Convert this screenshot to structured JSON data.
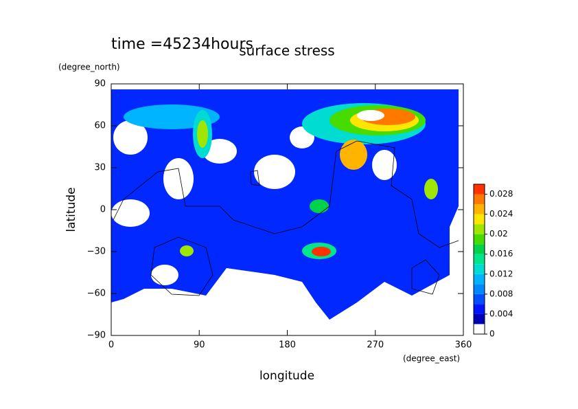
{
  "chart_data": {
    "type": "contour",
    "title": "surface stress",
    "subtitle": "time =45234hours",
    "y_unit": "(degree_north)",
    "x_unit": "(degree_east)",
    "ylabel": "latitude",
    "xlabel": "longitude",
    "xlim": [
      0,
      360
    ],
    "ylim": [
      -90,
      90
    ],
    "xticks": [
      0,
      90,
      180,
      270,
      360
    ],
    "yticks": [
      {
        "value": -90,
        "label": "−90"
      },
      {
        "value": -60,
        "label": "−60"
      },
      {
        "value": -30,
        "label": "−30"
      },
      0,
      30,
      60,
      90
    ],
    "colorbar": {
      "lim": [
        0,
        0.03
      ],
      "ticks": [
        0,
        0.004,
        0.008,
        0.012,
        0.016,
        0.02,
        0.024,
        0.028
      ],
      "colors": [
        "#ffffff",
        "#0000b4",
        "#0014ff",
        "#0050ff",
        "#0088ff",
        "#00b4ff",
        "#00dcd2",
        "#00e68c",
        "#00d24b",
        "#46dc00",
        "#a0e600",
        "#ffe600",
        "#ffb400",
        "#ff7800",
        "#ff3200"
      ]
    }
  }
}
